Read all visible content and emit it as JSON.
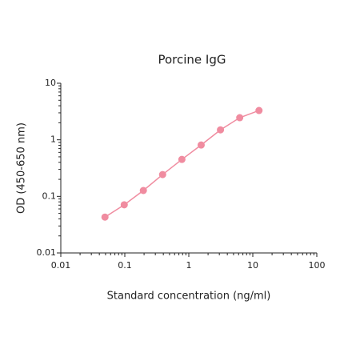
{
  "chart_data": {
    "type": "line",
    "title": "Porcine IgG",
    "x_label": "Standard concentration (ng/ml)",
    "y_label": "OD (450-650 nm)",
    "x": [
      0.049,
      0.098,
      0.195,
      0.39,
      0.78,
      1.56,
      3.125,
      6.25,
      12.5
    ],
    "series": [
      {
        "color": "#f08ca0",
        "values": [
          0.043,
          0.071,
          0.127,
          0.243,
          0.45,
          0.81,
          1.5,
          2.46,
          3.3
        ]
      }
    ],
    "xlim": [
      0.01,
      100
    ],
    "ylim": [
      0.01,
      10
    ],
    "xticks": [
      0.01,
      0.1,
      1,
      10,
      100
    ],
    "yticks": [
      0.01,
      0.1,
      1,
      10
    ],
    "xscale": "log",
    "yscale": "log",
    "grid": false
  }
}
